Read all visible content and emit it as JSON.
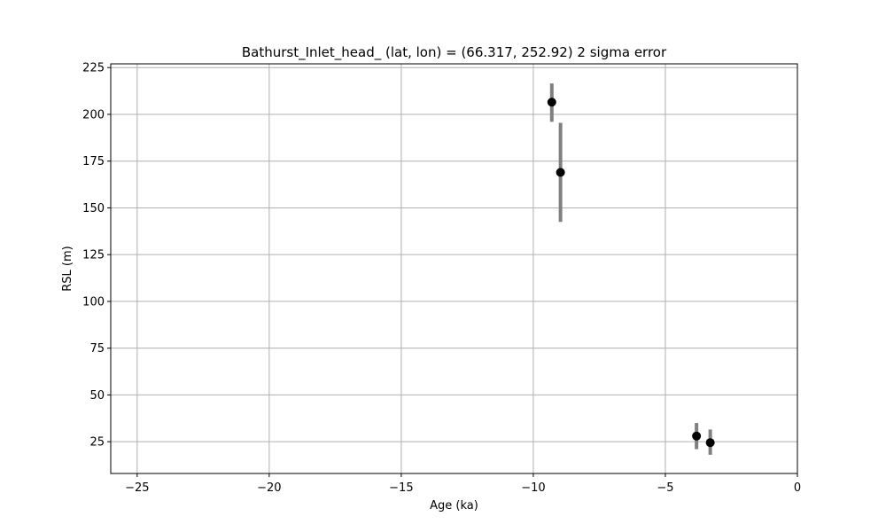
{
  "chart_data": {
    "type": "scatter",
    "title": "Bathurst_Inlet_head_ (lat, lon) = (66.317, 252.92)  2 sigma error",
    "xlabel": "Age (ka)",
    "ylabel": "RSL (m)",
    "xlim": [
      -26,
      0
    ],
    "ylim": [
      8,
      227
    ],
    "xticks": [
      -25,
      -20,
      -15,
      -10,
      -5,
      0
    ],
    "xtick_labels": [
      "−25",
      "−20",
      "−15",
      "−10",
      "−5",
      "0"
    ],
    "yticks": [
      25,
      50,
      75,
      100,
      125,
      150,
      175,
      200,
      225
    ],
    "ytick_labels": [
      "25",
      "50",
      "75",
      "100",
      "125",
      "150",
      "175",
      "200",
      "225"
    ],
    "grid": true,
    "points": [
      {
        "x": -9.3,
        "y": 206.5,
        "err_low": 196.0,
        "err_high": 216.5
      },
      {
        "x": -8.97,
        "y": 169.0,
        "err_low": 142.5,
        "err_high": 195.5
      },
      {
        "x": -3.82,
        "y": 28.0,
        "err_low": 21.0,
        "err_high": 35.0
      },
      {
        "x": -3.3,
        "y": 24.5,
        "err_low": 18.0,
        "err_high": 31.5
      }
    ],
    "colors": {
      "marker": "#000000",
      "errorbar": "#808080",
      "grid": "#b0b0b0"
    }
  }
}
